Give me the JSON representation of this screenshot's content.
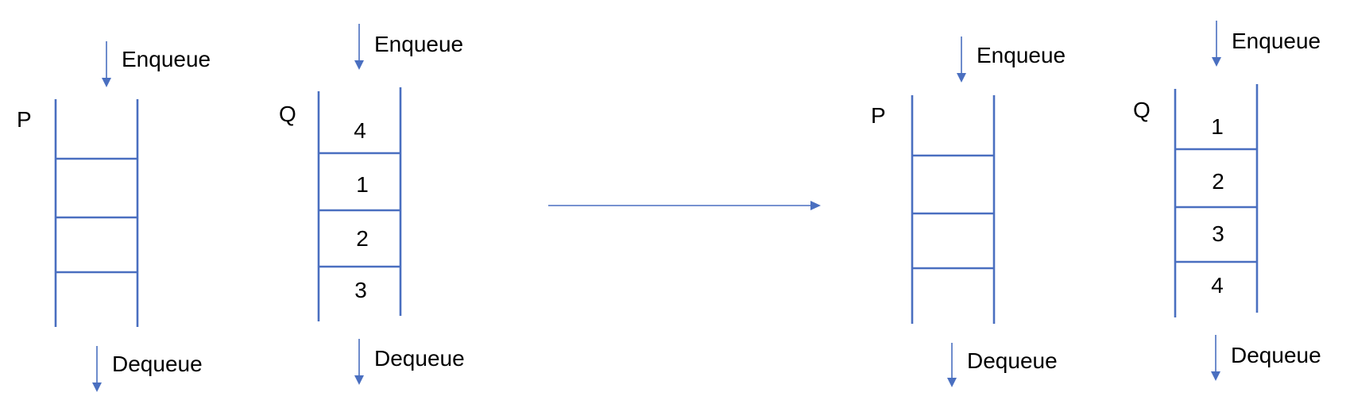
{
  "colors": {
    "line": "#4a6fc0",
    "text": "#000000",
    "background": "#ffffff"
  },
  "before": {
    "p": {
      "name": "P",
      "enqueue": "Enqueue",
      "dequeue": "Dequeue",
      "items": [
        "",
        "",
        "",
        ""
      ]
    },
    "q": {
      "name": "Q",
      "enqueue": "Enqueue",
      "dequeue": "Dequeue",
      "items": [
        "4",
        "1",
        "2",
        "3"
      ]
    }
  },
  "transition_arrow": "arrow-right",
  "after": {
    "p": {
      "name": "P",
      "enqueue": "Enqueue",
      "dequeue": "Dequeue",
      "items": [
        "",
        "",
        "",
        ""
      ]
    },
    "q": {
      "name": "Q",
      "enqueue": "Enqueue",
      "dequeue": "Dequeue",
      "items": [
        "1",
        "2",
        "3",
        "4"
      ]
    }
  }
}
